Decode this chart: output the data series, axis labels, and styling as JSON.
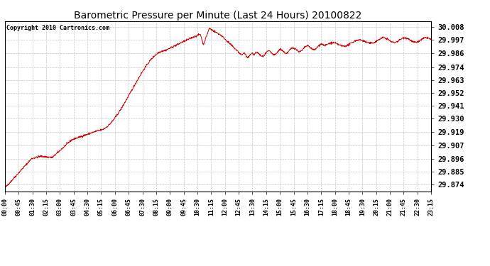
{
  "title": "Barometric Pressure per Minute (Last 24 Hours) 20100822",
  "copyright": "Copyright 2010 Cartronics.com",
  "line_color": "#cc0000",
  "background_color": "#ffffff",
  "grid_color": "#c8c8c8",
  "yticks": [
    29.874,
    29.885,
    29.896,
    29.907,
    29.919,
    29.93,
    29.941,
    29.952,
    29.963,
    29.974,
    29.986,
    29.997,
    30.008
  ],
  "ylim": [
    29.868,
    30.013
  ],
  "xtick_labels": [
    "00:00",
    "00:45",
    "01:30",
    "02:15",
    "03:00",
    "03:45",
    "04:30",
    "05:15",
    "06:00",
    "06:45",
    "07:30",
    "08:15",
    "09:00",
    "09:45",
    "10:30",
    "11:15",
    "12:00",
    "12:45",
    "13:30",
    "14:15",
    "15:00",
    "15:45",
    "16:30",
    "17:15",
    "18:00",
    "18:45",
    "19:30",
    "20:15",
    "21:00",
    "21:45",
    "22:30",
    "23:15"
  ],
  "n_points": 1440
}
